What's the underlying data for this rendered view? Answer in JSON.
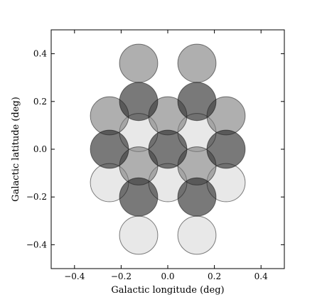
{
  "chart_data": {
    "type": "scatter",
    "xlabel": "Galactic longitude (deg)",
    "ylabel": "Galactic latitude (deg)",
    "xlim": [
      -0.5,
      0.5
    ],
    "ylim": [
      -0.5,
      0.5
    ],
    "xticks": [
      {
        "value": -0.4,
        "label": "−0.4"
      },
      {
        "value": -0.2,
        "label": "−0.2"
      },
      {
        "value": 0,
        "label": "0.0"
      },
      0.2,
      0.4
    ],
    "yticks": [
      {
        "value": -0.4,
        "label": "−0.4"
      },
      {
        "value": -0.2,
        "label": "−0.2"
      },
      {
        "value": 0,
        "label": "0.0"
      },
      0.2,
      0.4
    ],
    "marker_radius": 0.082,
    "alpha": 0.6,
    "series": [
      {
        "color": "#d8d8d8",
        "x": [
          -0.125,
          0.125,
          -0.25,
          0,
          0.25,
          -0.125,
          0.125
        ],
        "y": [
          0.07,
          0.07,
          -0.14,
          -0.14,
          -0.14,
          -0.36,
          -0.36
        ]
      },
      {
        "color": "#7a7a7a",
        "x": [
          -0.125,
          0.125,
          -0.25,
          0,
          0.25,
          -0.125,
          0.125
        ],
        "y": [
          0.36,
          0.36,
          0.14,
          0.14,
          0.14,
          -0.07,
          -0.07
        ]
      },
      {
        "color": "#202020",
        "x": [
          -0.125,
          0.125,
          -0.25,
          0,
          0.25,
          -0.125,
          0.125
        ],
        "y": [
          0.2,
          0.2,
          0,
          0,
          0,
          -0.2,
          -0.2
        ]
      }
    ]
  }
}
